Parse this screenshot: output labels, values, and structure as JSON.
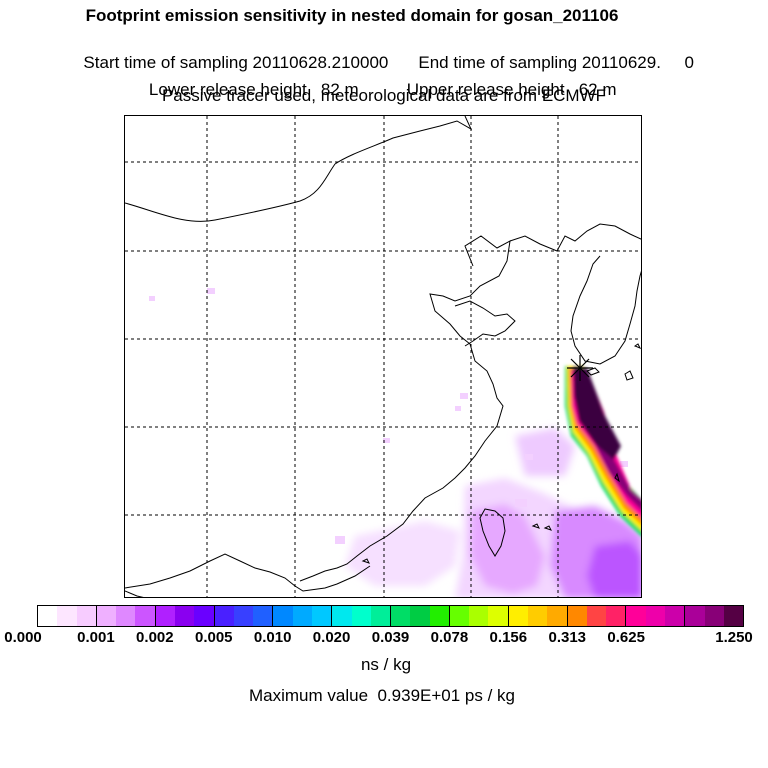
{
  "header": {
    "title": "Footprint emission sensitivity in nested domain for gosan_201106",
    "start_time": "Start time of sampling 20110628.210000",
    "end_time": "End time of sampling 20110629.     0",
    "lower_release": "Lower release height   82 m",
    "upper_release": "Upper release height   62 m",
    "tracer_note": "Passive tracer used, meteorological data are from ECMWF"
  },
  "map": {
    "receptor_marker": "star-icon",
    "colors": {
      "coastline": "#000000",
      "gridline": "#000000",
      "light_purple": "#eebbff",
      "mid_purple": "#cc66ff",
      "dark_purple": "#8800cc",
      "core": "#3a0040"
    }
  },
  "colorbar": {
    "colors": [
      "#ffffff",
      "#fde6ff",
      "#f7ccff",
      "#efb0ff",
      "#df88ff",
      "#cc55ff",
      "#b020ff",
      "#8a00f0",
      "#6a00ff",
      "#4a20ff",
      "#3840ff",
      "#2060ff",
      "#0088ff",
      "#00aaff",
      "#00c8ff",
      "#00e8ee",
      "#00ffcc",
      "#00ee99",
      "#00dd66",
      "#00cc44",
      "#22ee00",
      "#66ff00",
      "#aaff00",
      "#ddff00",
      "#ffee00",
      "#ffcc00",
      "#ffaa00",
      "#ff8800",
      "#ff4444",
      "#ff2266",
      "#ff0099",
      "#ee00aa",
      "#cc00aa",
      "#aa0099",
      "#880077",
      "#550044"
    ],
    "tick_labels": [
      "0.000",
      "0.001",
      "0.002",
      "0.005",
      "0.010",
      "0.020",
      "0.039",
      "0.078",
      "0.156",
      "0.313",
      "0.625",
      "1.250"
    ],
    "units": "ns / kg",
    "max_value": "Maximum value  0.939E+01 ps / kg"
  }
}
